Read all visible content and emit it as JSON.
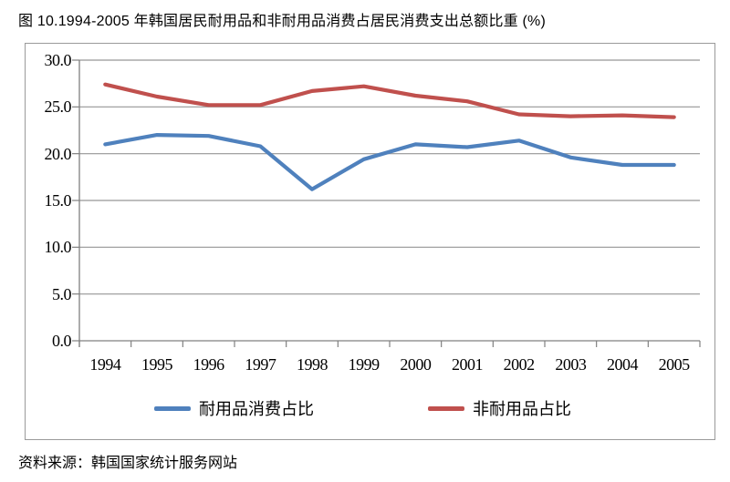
{
  "figure": {
    "title": "图 10.1994-2005 年韩国居民耐用品和非耐用品消费占居民消费支出总额比重 (%)",
    "source_note": "资料来源：韩国国家统计服务网站"
  },
  "chart_data": {
    "type": "line",
    "title": "图 10.1994-2005 年韩国居民耐用品和非耐用品消费占居民消费支出总额比重 (%)",
    "categories": [
      "1994",
      "1995",
      "1996",
      "1997",
      "1998",
      "1999",
      "2000",
      "2001",
      "2002",
      "2003",
      "2004",
      "2005"
    ],
    "series": [
      {
        "id": "durables",
        "name": "耐用品消费占比",
        "color": "#4F81BD",
        "values": [
          21.0,
          22.0,
          21.9,
          20.8,
          16.2,
          19.4,
          21.0,
          20.7,
          21.4,
          19.6,
          18.8,
          18.8
        ]
      },
      {
        "id": "nondurables",
        "name": "非耐用品占比",
        "color": "#C0504D",
        "values": [
          27.4,
          26.1,
          25.2,
          25.2,
          26.7,
          27.2,
          26.2,
          25.6,
          24.2,
          24.0,
          24.1,
          23.9
        ]
      }
    ],
    "xlabel": "",
    "ylabel": "",
    "ylim": [
      0,
      30
    ],
    "ytick_step": 5,
    "ytick_format": "one_decimal",
    "grid": true,
    "legend_position": "bottom",
    "colors": {
      "grid": "#969696",
      "axis": "#808080"
    }
  }
}
